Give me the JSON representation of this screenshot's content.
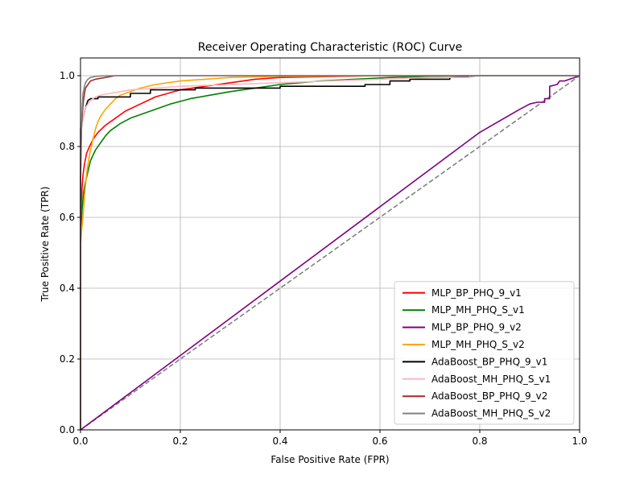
{
  "chart_data": {
    "type": "line",
    "title": "Receiver Operating Characteristic (ROC) Curve",
    "xlabel": "False Positive Rate (FPR)",
    "ylabel": "True Positive Rate (TPR)",
    "xlim": [
      0,
      1
    ],
    "ylim": [
      0,
      1.05
    ],
    "xticks": [
      0.0,
      0.2,
      0.4,
      0.6,
      0.8,
      1.0
    ],
    "yticks": [
      0.0,
      0.2,
      0.4,
      0.6,
      0.8,
      1.0
    ],
    "xtick_labels": [
      "0.0",
      "0.2",
      "0.4",
      "0.6",
      "0.8",
      "1.0"
    ],
    "ytick_labels": [
      "0.0",
      "0.2",
      "0.4",
      "0.6",
      "0.8",
      "1.0"
    ],
    "grid": true,
    "legend_position": "lower-right",
    "series": [
      {
        "name": "MLP_BP_PHQ_9_v1",
        "color": "#ff0000",
        "x": [
          0.0,
          0.0,
          0.003,
          0.005,
          0.008,
          0.012,
          0.018,
          0.025,
          0.035,
          0.05,
          0.07,
          0.09,
          0.12,
          0.15,
          0.2,
          0.25,
          0.3,
          0.35,
          0.4,
          0.6,
          0.8,
          1.0
        ],
        "y": [
          0.0,
          0.6,
          0.68,
          0.72,
          0.75,
          0.78,
          0.8,
          0.82,
          0.84,
          0.86,
          0.88,
          0.9,
          0.92,
          0.94,
          0.96,
          0.97,
          0.98,
          0.99,
          0.995,
          1.0,
          1.0,
          1.0
        ]
      },
      {
        "name": "MLP_MH_PHQ_S_v1",
        "color": "#008000",
        "x": [
          0.0,
          0.0,
          0.003,
          0.006,
          0.01,
          0.015,
          0.02,
          0.03,
          0.04,
          0.05,
          0.06,
          0.07,
          0.08,
          0.1,
          0.12,
          0.14,
          0.16,
          0.18,
          0.22,
          0.26,
          0.3,
          0.35,
          0.4,
          0.48,
          0.55,
          0.62,
          0.7,
          0.8,
          1.0
        ],
        "y": [
          0.0,
          0.55,
          0.62,
          0.67,
          0.7,
          0.73,
          0.76,
          0.79,
          0.81,
          0.83,
          0.845,
          0.855,
          0.865,
          0.88,
          0.89,
          0.9,
          0.91,
          0.92,
          0.935,
          0.945,
          0.955,
          0.965,
          0.975,
          0.985,
          0.99,
          0.995,
          0.998,
          1.0,
          1.0
        ]
      },
      {
        "name": "MLP_BP_PHQ_9_v2",
        "color": "#800080",
        "x": [
          0.0,
          0.2,
          0.4,
          0.6,
          0.8,
          0.88,
          0.9,
          0.915,
          0.93,
          0.93,
          0.94,
          0.94,
          0.955,
          0.96,
          0.97,
          0.98,
          0.99,
          1.0
        ],
        "y": [
          0.0,
          0.21,
          0.42,
          0.63,
          0.84,
          0.905,
          0.92,
          0.925,
          0.925,
          0.935,
          0.935,
          0.97,
          0.975,
          0.985,
          0.985,
          0.99,
          0.995,
          1.0
        ]
      },
      {
        "name": "MLP_MH_PHQ_S_v2",
        "color": "#ffa500",
        "x": [
          0.0,
          0.0,
          0.002,
          0.005,
          0.008,
          0.012,
          0.016,
          0.02,
          0.025,
          0.03,
          0.035,
          0.04,
          0.05,
          0.06,
          0.07,
          0.08,
          0.1,
          0.12,
          0.15,
          0.2,
          0.25,
          0.3,
          0.4,
          0.6,
          1.0
        ],
        "y": [
          0.0,
          0.52,
          0.56,
          0.6,
          0.66,
          0.72,
          0.76,
          0.79,
          0.82,
          0.85,
          0.87,
          0.885,
          0.905,
          0.92,
          0.935,
          0.945,
          0.955,
          0.965,
          0.975,
          0.985,
          0.99,
          0.995,
          0.998,
          1.0,
          1.0
        ]
      },
      {
        "name": "AdaBoost_BP_PHQ_9_v1",
        "color": "#000000",
        "x": [
          0.0,
          0.0,
          0.005,
          0.01,
          0.015,
          0.02,
          0.035,
          0.035,
          0.1,
          0.1,
          0.14,
          0.14,
          0.23,
          0.23,
          0.28,
          0.28,
          0.4,
          0.4,
          0.57,
          0.57,
          0.62,
          0.62,
          0.66,
          0.66,
          0.74,
          0.74,
          0.8,
          1.0
        ],
        "y": [
          0.0,
          0.85,
          0.88,
          0.91,
          0.93,
          0.935,
          0.935,
          0.94,
          0.94,
          0.95,
          0.95,
          0.96,
          0.96,
          0.965,
          0.965,
          0.965,
          0.965,
          0.97,
          0.97,
          0.975,
          0.975,
          0.985,
          0.985,
          0.99,
          0.99,
          0.995,
          1.0,
          1.0
        ]
      },
      {
        "name": "AdaBoost_MH_PHQ_S_v1",
        "color": "#ffb6c1",
        "x": [
          0.0,
          0.0,
          0.005,
          0.01,
          0.02,
          0.03,
          0.04,
          0.06,
          0.08,
          0.1,
          0.15,
          0.2,
          0.3,
          0.4,
          0.5,
          0.6,
          0.7,
          0.78,
          0.78,
          1.0
        ],
        "y": [
          0.0,
          0.85,
          0.88,
          0.91,
          0.93,
          0.94,
          0.945,
          0.95,
          0.955,
          0.96,
          0.965,
          0.97,
          0.975,
          0.98,
          0.985,
          0.99,
          0.995,
          0.995,
          1.0,
          1.0
        ]
      },
      {
        "name": "AdaBoost_BP_PHQ_9_v2",
        "color": "#a52a2a",
        "x": [
          0.0,
          0.0,
          0.002,
          0.004,
          0.006,
          0.008,
          0.01,
          0.015,
          0.02,
          0.03,
          0.05,
          0.07,
          0.1,
          0.2,
          1.0
        ],
        "y": [
          0.0,
          0.7,
          0.85,
          0.9,
          0.93,
          0.95,
          0.965,
          0.975,
          0.985,
          0.99,
          0.995,
          1.0,
          1.0,
          1.0,
          1.0
        ]
      },
      {
        "name": "AdaBoost_MH_PHQ_S_v2",
        "color": "#808080",
        "x": [
          0.0,
          0.0,
          0.003,
          0.005,
          0.008,
          0.01,
          0.012,
          0.015,
          0.02,
          0.03,
          0.05,
          0.1,
          1.0
        ],
        "y": [
          0.0,
          0.75,
          0.9,
          0.95,
          0.97,
          0.98,
          0.985,
          0.99,
          0.995,
          0.998,
          1.0,
          1.0,
          1.0
        ]
      }
    ],
    "reference_line": {
      "color": "#808080",
      "style": "dashed",
      "x": [
        0,
        1
      ],
      "y": [
        0,
        1
      ]
    }
  }
}
